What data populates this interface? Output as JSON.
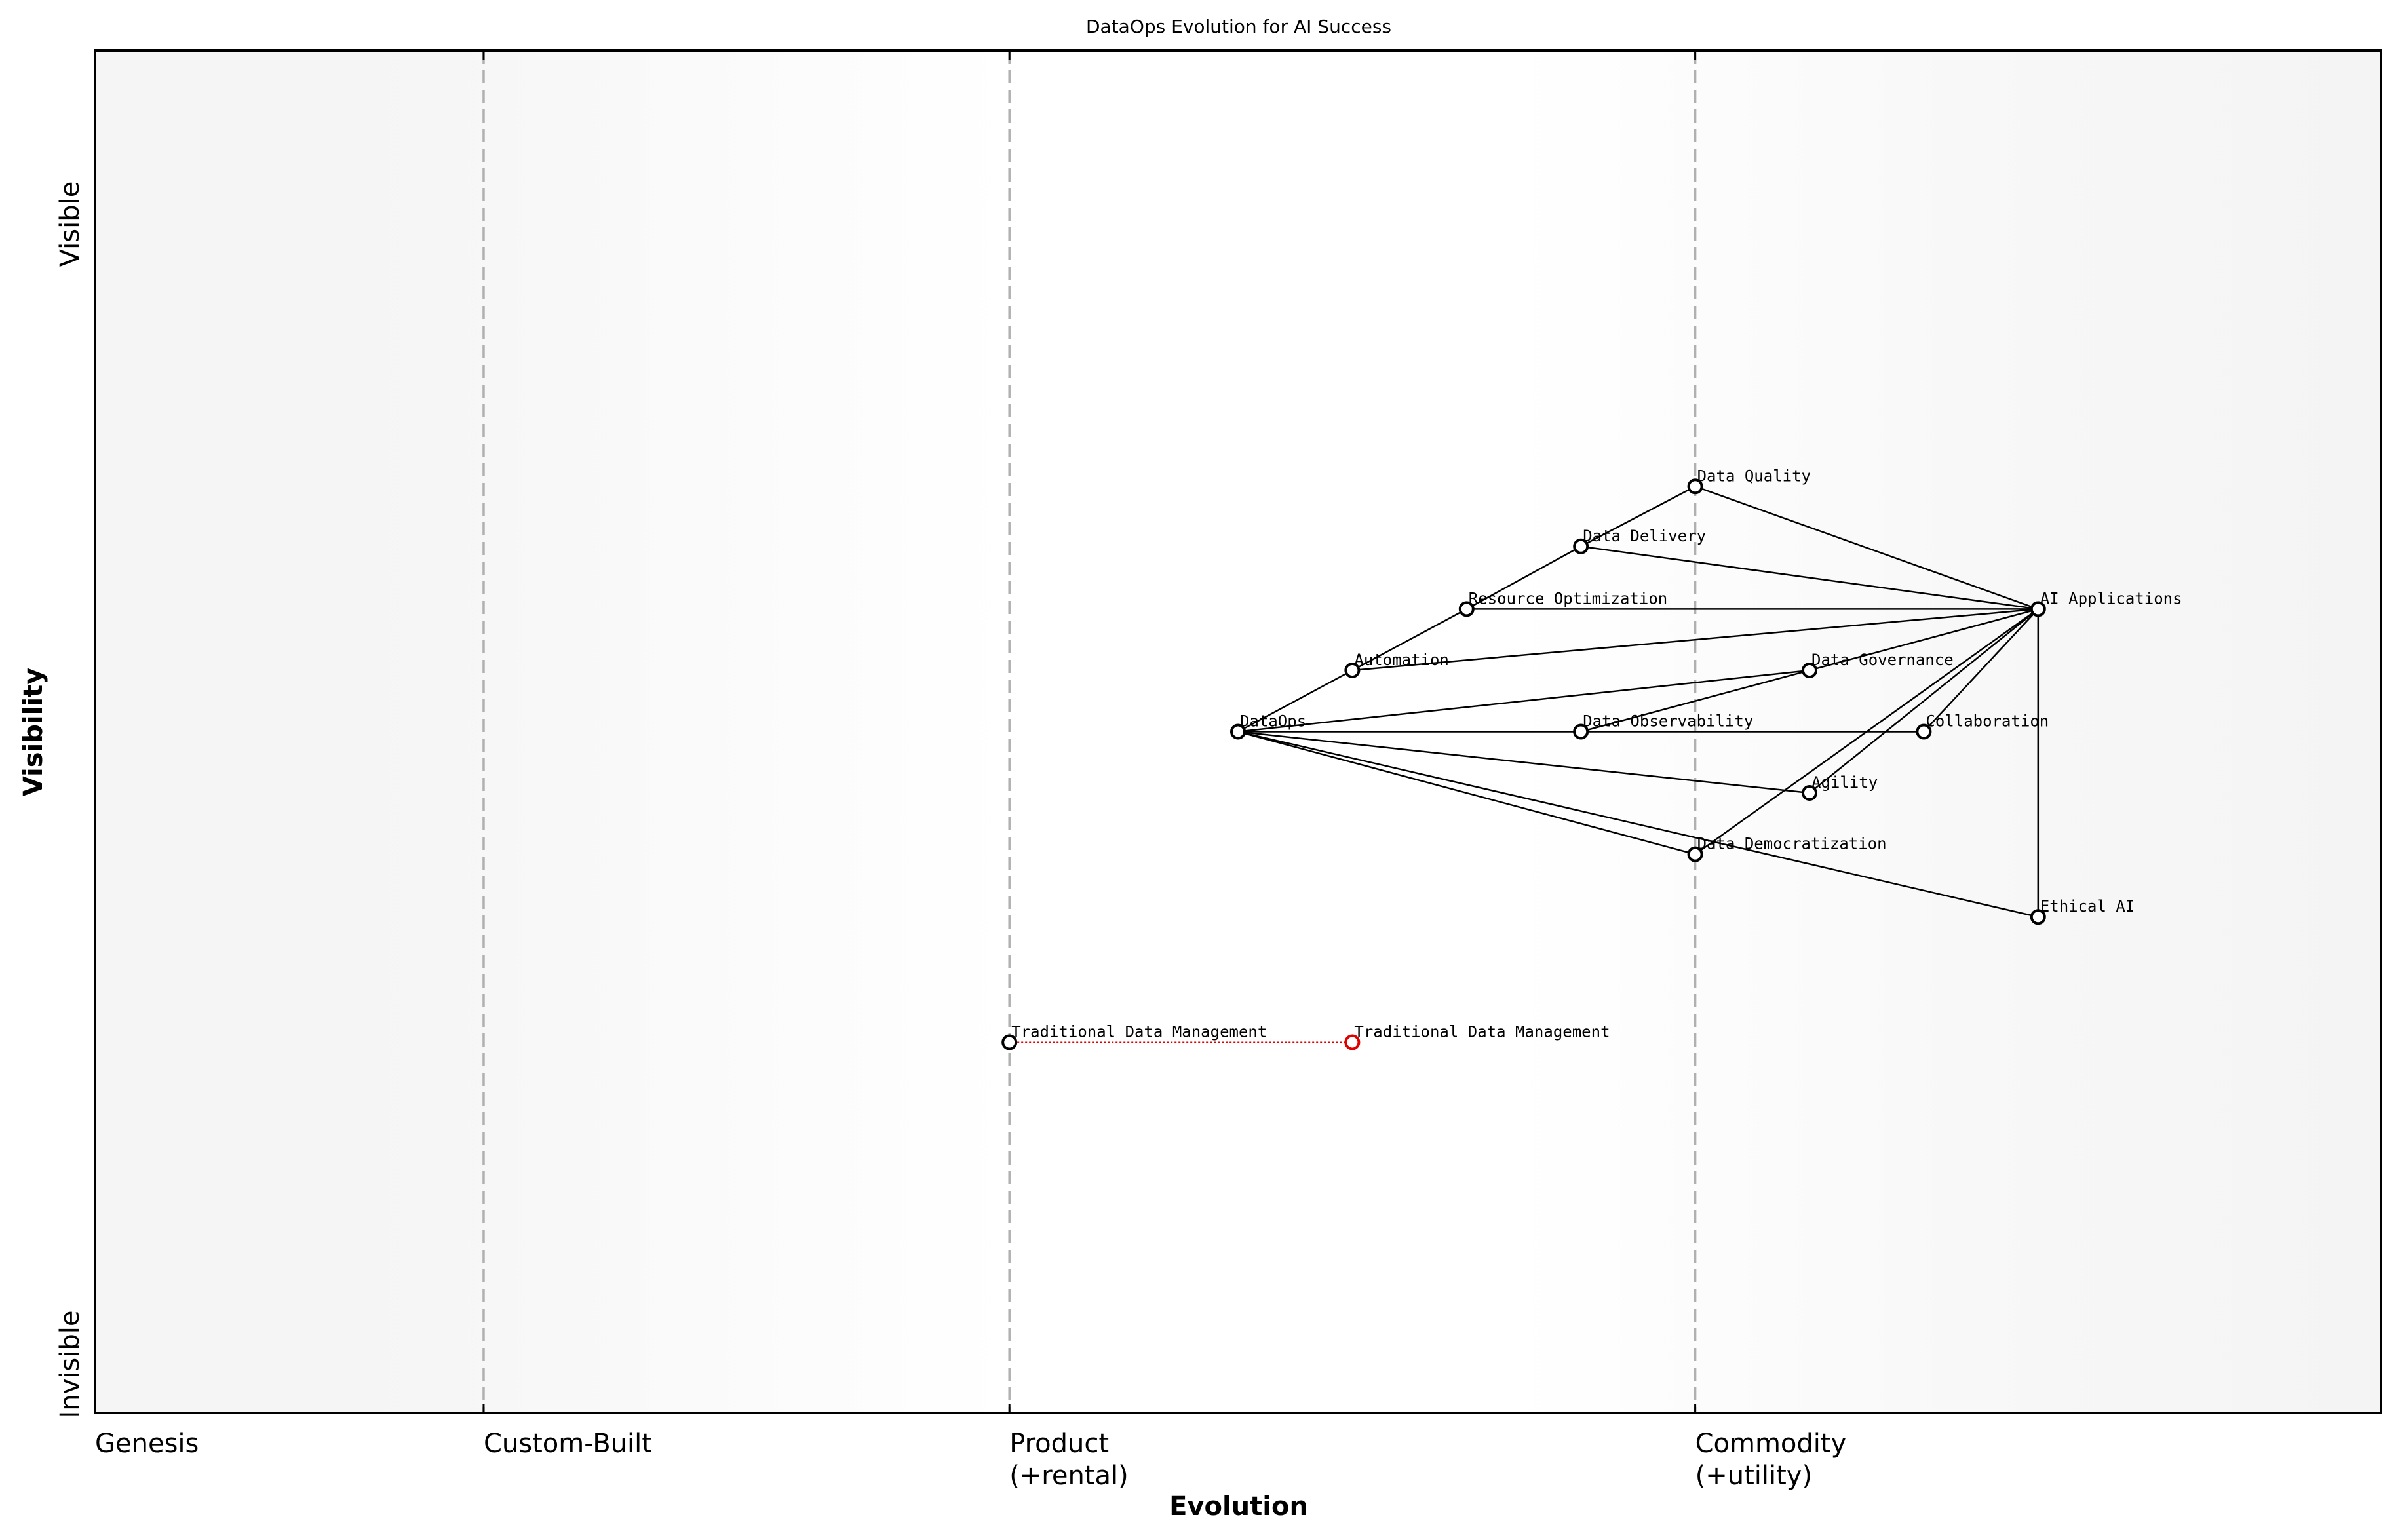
{
  "title": "DataOps Evolution for AI Success",
  "axes": {
    "x_label": "Evolution",
    "y_label": "Visibility",
    "y_top": "Visible",
    "y_bottom": "Invisible",
    "stages": [
      {
        "line1": "Genesis",
        "line2": "",
        "x": 0.0
      },
      {
        "line1": "Custom-Built",
        "line2": "",
        "x": 0.17
      },
      {
        "line1": "Product",
        "line2": "(+rental)",
        "x": 0.4
      },
      {
        "line1": "Commodity",
        "line2": "(+utility)",
        "x": 0.7
      }
    ]
  },
  "colors": {
    "node_stroke": "#000000",
    "evolved_node_stroke": "#e00000",
    "stage_line": "#b0b0b0",
    "background_edge": "#f5f5f5",
    "background_mid": "#ffffff"
  },
  "chart_data": {
    "type": "wardley-map",
    "title": "DataOps Evolution for AI Success",
    "xlabel": "Evolution",
    "ylabel": "Visibility",
    "xlim": [
      0,
      1
    ],
    "ylim": [
      0,
      1
    ],
    "stages": [
      "Genesis",
      "Custom-Built",
      "Product (+rental)",
      "Commodity (+utility)"
    ],
    "components": [
      {
        "name": "AI Applications",
        "evolution": 0.85,
        "visibility": 0.59
      },
      {
        "name": "Data Quality",
        "evolution": 0.7,
        "visibility": 0.68
      },
      {
        "name": "Data Delivery",
        "evolution": 0.65,
        "visibility": 0.636
      },
      {
        "name": "Resource Optimization",
        "evolution": 0.6,
        "visibility": 0.59
      },
      {
        "name": "Automation",
        "evolution": 0.55,
        "visibility": 0.545
      },
      {
        "name": "Data Governance",
        "evolution": 0.75,
        "visibility": 0.545
      },
      {
        "name": "DataOps",
        "evolution": 0.5,
        "visibility": 0.5
      },
      {
        "name": "Data Observability",
        "evolution": 0.65,
        "visibility": 0.5
      },
      {
        "name": "Collaboration",
        "evolution": 0.8,
        "visibility": 0.5
      },
      {
        "name": "Agility",
        "evolution": 0.75,
        "visibility": 0.455
      },
      {
        "name": "Data Democratization",
        "evolution": 0.7,
        "visibility": 0.41
      },
      {
        "name": "Ethical AI",
        "evolution": 0.85,
        "visibility": 0.364
      },
      {
        "name": "Traditional Data Management",
        "evolution": 0.4,
        "visibility": 0.272
      }
    ],
    "evolutions": [
      {
        "name": "Traditional Data Management",
        "from": 0.4,
        "to": 0.55,
        "visibility": 0.272
      }
    ],
    "links": [
      [
        "DataOps",
        "Automation"
      ],
      [
        "Automation",
        "Resource Optimization"
      ],
      [
        "Resource Optimization",
        "Data Delivery"
      ],
      [
        "Data Delivery",
        "Data Quality"
      ],
      [
        "Data Quality",
        "AI Applications"
      ],
      [
        "Data Delivery",
        "AI Applications"
      ],
      [
        "Resource Optimization",
        "AI Applications"
      ],
      [
        "Automation",
        "AI Applications"
      ],
      [
        "DataOps",
        "Data Governance"
      ],
      [
        "Data Observability",
        "Data Governance"
      ],
      [
        "Data Governance",
        "AI Applications"
      ],
      [
        "DataOps",
        "Data Observability"
      ],
      [
        "Data Observability",
        "Collaboration"
      ],
      [
        "Collaboration",
        "AI Applications"
      ],
      [
        "DataOps",
        "Agility"
      ],
      [
        "Agility",
        "AI Applications"
      ],
      [
        "DataOps",
        "Data Democratization"
      ],
      [
        "Data Democratization",
        "AI Applications"
      ],
      [
        "DataOps",
        "Ethical AI"
      ],
      [
        "Ethical AI",
        "AI Applications"
      ]
    ]
  }
}
